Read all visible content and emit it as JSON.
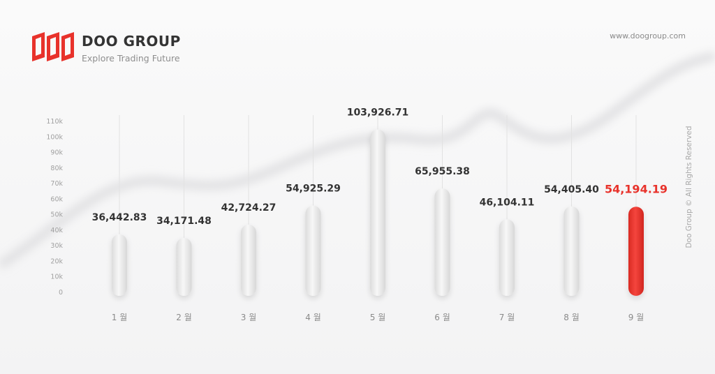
{
  "header": {
    "brand": "DOO GROUP",
    "tagline": "Explore Trading Future",
    "url": "www.doogroup.com",
    "rights": "Doo Group © All Rights Reserved"
  },
  "colors": {
    "highlight": "#e8322b",
    "bar": "#ececec",
    "text": "#333333",
    "axis": "#a0a0a0"
  },
  "chart_data": {
    "type": "bar",
    "categories": [
      "1 월",
      "2 월",
      "3 월",
      "4 월",
      "5 월",
      "6 월",
      "7 월",
      "8 월",
      "9 월"
    ],
    "values": [
      36442.83,
      34171.48,
      42724.27,
      54925.29,
      103926.71,
      65955.38,
      46104.11,
      54405.4,
      54194.19
    ],
    "value_labels": [
      "36,442.83",
      "34,171.48",
      "42,724.27",
      "54,925.29",
      "103,926.71",
      "65,955.38",
      "46,104.11",
      "54,405.40",
      "54,194.19"
    ],
    "highlight_index": 8,
    "yticks": [
      "0",
      "10k",
      "20k",
      "30k",
      "40k",
      "50k",
      "60k",
      "70k",
      "80k",
      "90k",
      "100k",
      "110k"
    ],
    "ylim": [
      0,
      110000
    ],
    "grid": false,
    "title": "",
    "xlabel": "",
    "ylabel": ""
  }
}
